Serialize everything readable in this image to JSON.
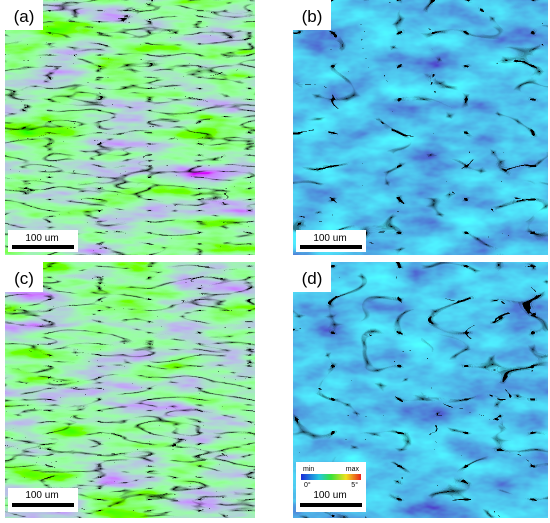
{
  "panels": [
    {
      "label": "(a)",
      "scale_bar": "100 um"
    },
    {
      "label": "(b)",
      "scale_bar": "100 um"
    },
    {
      "label": "(c)",
      "scale_bar": "100 um"
    },
    {
      "label": "(d)",
      "scale_bar": "100 um"
    }
  ],
  "color_legend": {
    "min": "min",
    "max": "max",
    "low": "0°",
    "high": "5°"
  }
}
